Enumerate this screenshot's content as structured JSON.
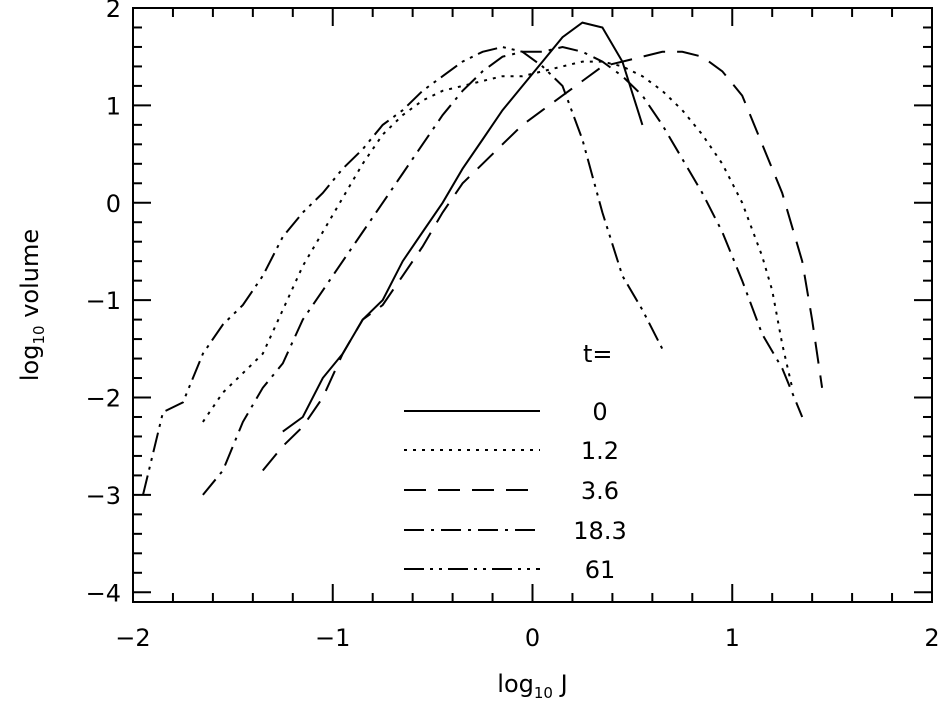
{
  "chart_data": {
    "type": "line",
    "xlabel_main": "log",
    "xlabel_sub": "10",
    "xlabel_rest": " J",
    "ylabel_main": "log",
    "ylabel_sub": "10",
    "ylabel_rest": " volume",
    "xlim": [
      -2,
      2
    ],
    "ylim": [
      -4.1,
      2
    ],
    "x_ticks": [
      -2,
      -1,
      0,
      1,
      2
    ],
    "x_tick_labels": [
      "−2",
      "−1",
      "0",
      "1",
      "2"
    ],
    "y_ticks": [
      -4,
      -3,
      -2,
      -1,
      0,
      1,
      2
    ],
    "y_tick_labels": [
      "−4",
      "−3",
      "−2",
      "−1",
      "0",
      "1",
      "2"
    ],
    "legend_title": "t=",
    "legend_placement": "bottom-center",
    "series": [
      {
        "name": "0",
        "dash": "solid",
        "x": [
          -1.25,
          -1.15,
          -1.05,
          -0.95,
          -0.85,
          -0.75,
          -0.65,
          -0.55,
          -0.45,
          -0.35,
          -0.25,
          -0.15,
          -0.05,
          0.05,
          0.15,
          0.25,
          0.35,
          0.45,
          0.55
        ],
        "y": [
          -2.35,
          -2.2,
          -1.8,
          -1.55,
          -1.2,
          -1.0,
          -0.6,
          -0.3,
          0.0,
          0.35,
          0.65,
          0.95,
          1.2,
          1.45,
          1.7,
          1.85,
          1.8,
          1.45,
          0.8
        ]
      },
      {
        "name": "1.2",
        "dash": "dot",
        "x": [
          -1.65,
          -1.55,
          -1.45,
          -1.35,
          -1.25,
          -1.15,
          -1.05,
          -0.95,
          -0.85,
          -0.75,
          -0.65,
          -0.55,
          -0.45,
          -0.35,
          -0.25,
          -0.15,
          -0.05,
          0.05,
          0.15,
          0.25,
          0.35,
          0.45,
          0.55,
          0.65,
          0.75,
          0.85,
          0.95,
          1.05,
          1.15,
          1.2,
          1.25,
          1.3
        ],
        "y": [
          -2.25,
          -1.95,
          -1.75,
          -1.55,
          -1.1,
          -0.65,
          -0.3,
          0.05,
          0.4,
          0.7,
          0.9,
          1.05,
          1.15,
          1.2,
          1.25,
          1.3,
          1.3,
          1.35,
          1.4,
          1.45,
          1.45,
          1.4,
          1.3,
          1.15,
          0.95,
          0.7,
          0.4,
          0.0,
          -0.55,
          -0.9,
          -1.45,
          -1.9
        ]
      },
      {
        "name": "3.6",
        "dash": "dash",
        "x": [
          -1.35,
          -1.25,
          -1.15,
          -1.05,
          -0.95,
          -0.85,
          -0.75,
          -0.65,
          -0.55,
          -0.45,
          -0.35,
          -0.25,
          -0.15,
          -0.05,
          0.05,
          0.15,
          0.25,
          0.35,
          0.45,
          0.55,
          0.65,
          0.75,
          0.85,
          0.95,
          1.05,
          1.15,
          1.25,
          1.35,
          1.4,
          1.45
        ],
        "y": [
          -2.75,
          -2.5,
          -2.3,
          -2.0,
          -1.55,
          -1.2,
          -1.05,
          -0.75,
          -0.45,
          -0.1,
          0.2,
          0.4,
          0.6,
          0.8,
          0.95,
          1.1,
          1.25,
          1.4,
          1.45,
          1.5,
          1.55,
          1.55,
          1.5,
          1.35,
          1.1,
          0.6,
          0.1,
          -0.6,
          -1.2,
          -1.9
        ]
      },
      {
        "name": "18.3",
        "dash": "dashdot",
        "x": [
          -1.65,
          -1.55,
          -1.45,
          -1.35,
          -1.25,
          -1.15,
          -1.05,
          -0.95,
          -0.85,
          -0.75,
          -0.65,
          -0.55,
          -0.45,
          -0.35,
          -0.25,
          -0.15,
          -0.05,
          0.05,
          0.15,
          0.25,
          0.35,
          0.45,
          0.55,
          0.65,
          0.75,
          0.85,
          0.95,
          1.05,
          1.15,
          1.25,
          1.35
        ],
        "y": [
          -3.0,
          -2.75,
          -2.25,
          -1.9,
          -1.65,
          -1.2,
          -0.9,
          -0.6,
          -0.3,
          0.0,
          0.3,
          0.6,
          0.9,
          1.15,
          1.35,
          1.5,
          1.55,
          1.55,
          1.6,
          1.55,
          1.45,
          1.3,
          1.1,
          0.8,
          0.45,
          0.1,
          -0.3,
          -0.8,
          -1.35,
          -1.7,
          -2.2
        ]
      },
      {
        "name": "61",
        "dash": "dashdotdot",
        "x": [
          -1.95,
          -1.85,
          -1.75,
          -1.65,
          -1.55,
          -1.45,
          -1.35,
          -1.25,
          -1.15,
          -1.05,
          -0.95,
          -0.85,
          -0.75,
          -0.65,
          -0.55,
          -0.45,
          -0.35,
          -0.25,
          -0.15,
          -0.05,
          0.05,
          0.15,
          0.25,
          0.35,
          0.45,
          0.55,
          0.65
        ],
        "y": [
          -3.0,
          -2.15,
          -2.05,
          -1.55,
          -1.25,
          -1.05,
          -0.75,
          -0.35,
          -0.1,
          0.1,
          0.35,
          0.55,
          0.8,
          0.95,
          1.15,
          1.3,
          1.45,
          1.55,
          1.6,
          1.55,
          1.4,
          1.2,
          0.65,
          -0.1,
          -0.75,
          -1.1,
          -1.5
        ]
      }
    ]
  }
}
